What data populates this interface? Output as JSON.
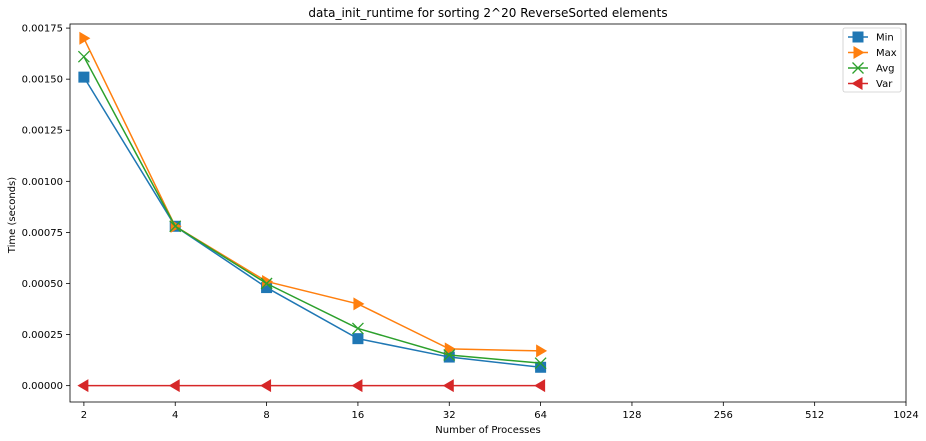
{
  "chart_data": {
    "type": "line",
    "title": "data_init_runtime for sorting 2^20 ReverseSorted elements",
    "xlabel": "Number of Processes",
    "ylabel": "Time (seconds)",
    "x_scale": "log2",
    "x_ticks": [
      2,
      4,
      8,
      16,
      32,
      64,
      128,
      256,
      512,
      1024
    ],
    "x_tick_labels": [
      "2",
      "4",
      "8",
      "16",
      "32",
      "64",
      "128",
      "256",
      "512",
      "1024"
    ],
    "y_ticks": [
      0.0,
      0.00025,
      0.0005,
      0.00075,
      0.001,
      0.00125,
      0.0015,
      0.00175
    ],
    "y_tick_labels": [
      "0.00000",
      "0.00025",
      "0.00050",
      "0.00075",
      "0.00100",
      "0.00125",
      "0.00150",
      "0.00175"
    ],
    "xlim": [
      1.8,
      1024
    ],
    "ylim": [
      -8e-05,
      0.00177
    ],
    "legend_position": "top-right",
    "x": [
      2,
      4,
      8,
      16,
      32,
      64
    ],
    "series": [
      {
        "name": "Min",
        "color": "#1f77b4",
        "marker": "square",
        "values": [
          0.00151,
          0.00078,
          0.00048,
          0.00023,
          0.00014,
          9e-05
        ]
      },
      {
        "name": "Max",
        "color": "#ff7f0e",
        "marker": "triangle-right",
        "values": [
          0.0017,
          0.00078,
          0.00051,
          0.0004,
          0.00018,
          0.00017
        ]
      },
      {
        "name": "Avg",
        "color": "#2ca02c",
        "marker": "x",
        "values": [
          0.00161,
          0.00078,
          0.0005,
          0.00028,
          0.00015,
          0.00011
        ]
      },
      {
        "name": "Var",
        "color": "#d62728",
        "marker": "triangle-left",
        "values": [
          0.0,
          0.0,
          0.0,
          0.0,
          0.0,
          0.0
        ]
      }
    ]
  }
}
